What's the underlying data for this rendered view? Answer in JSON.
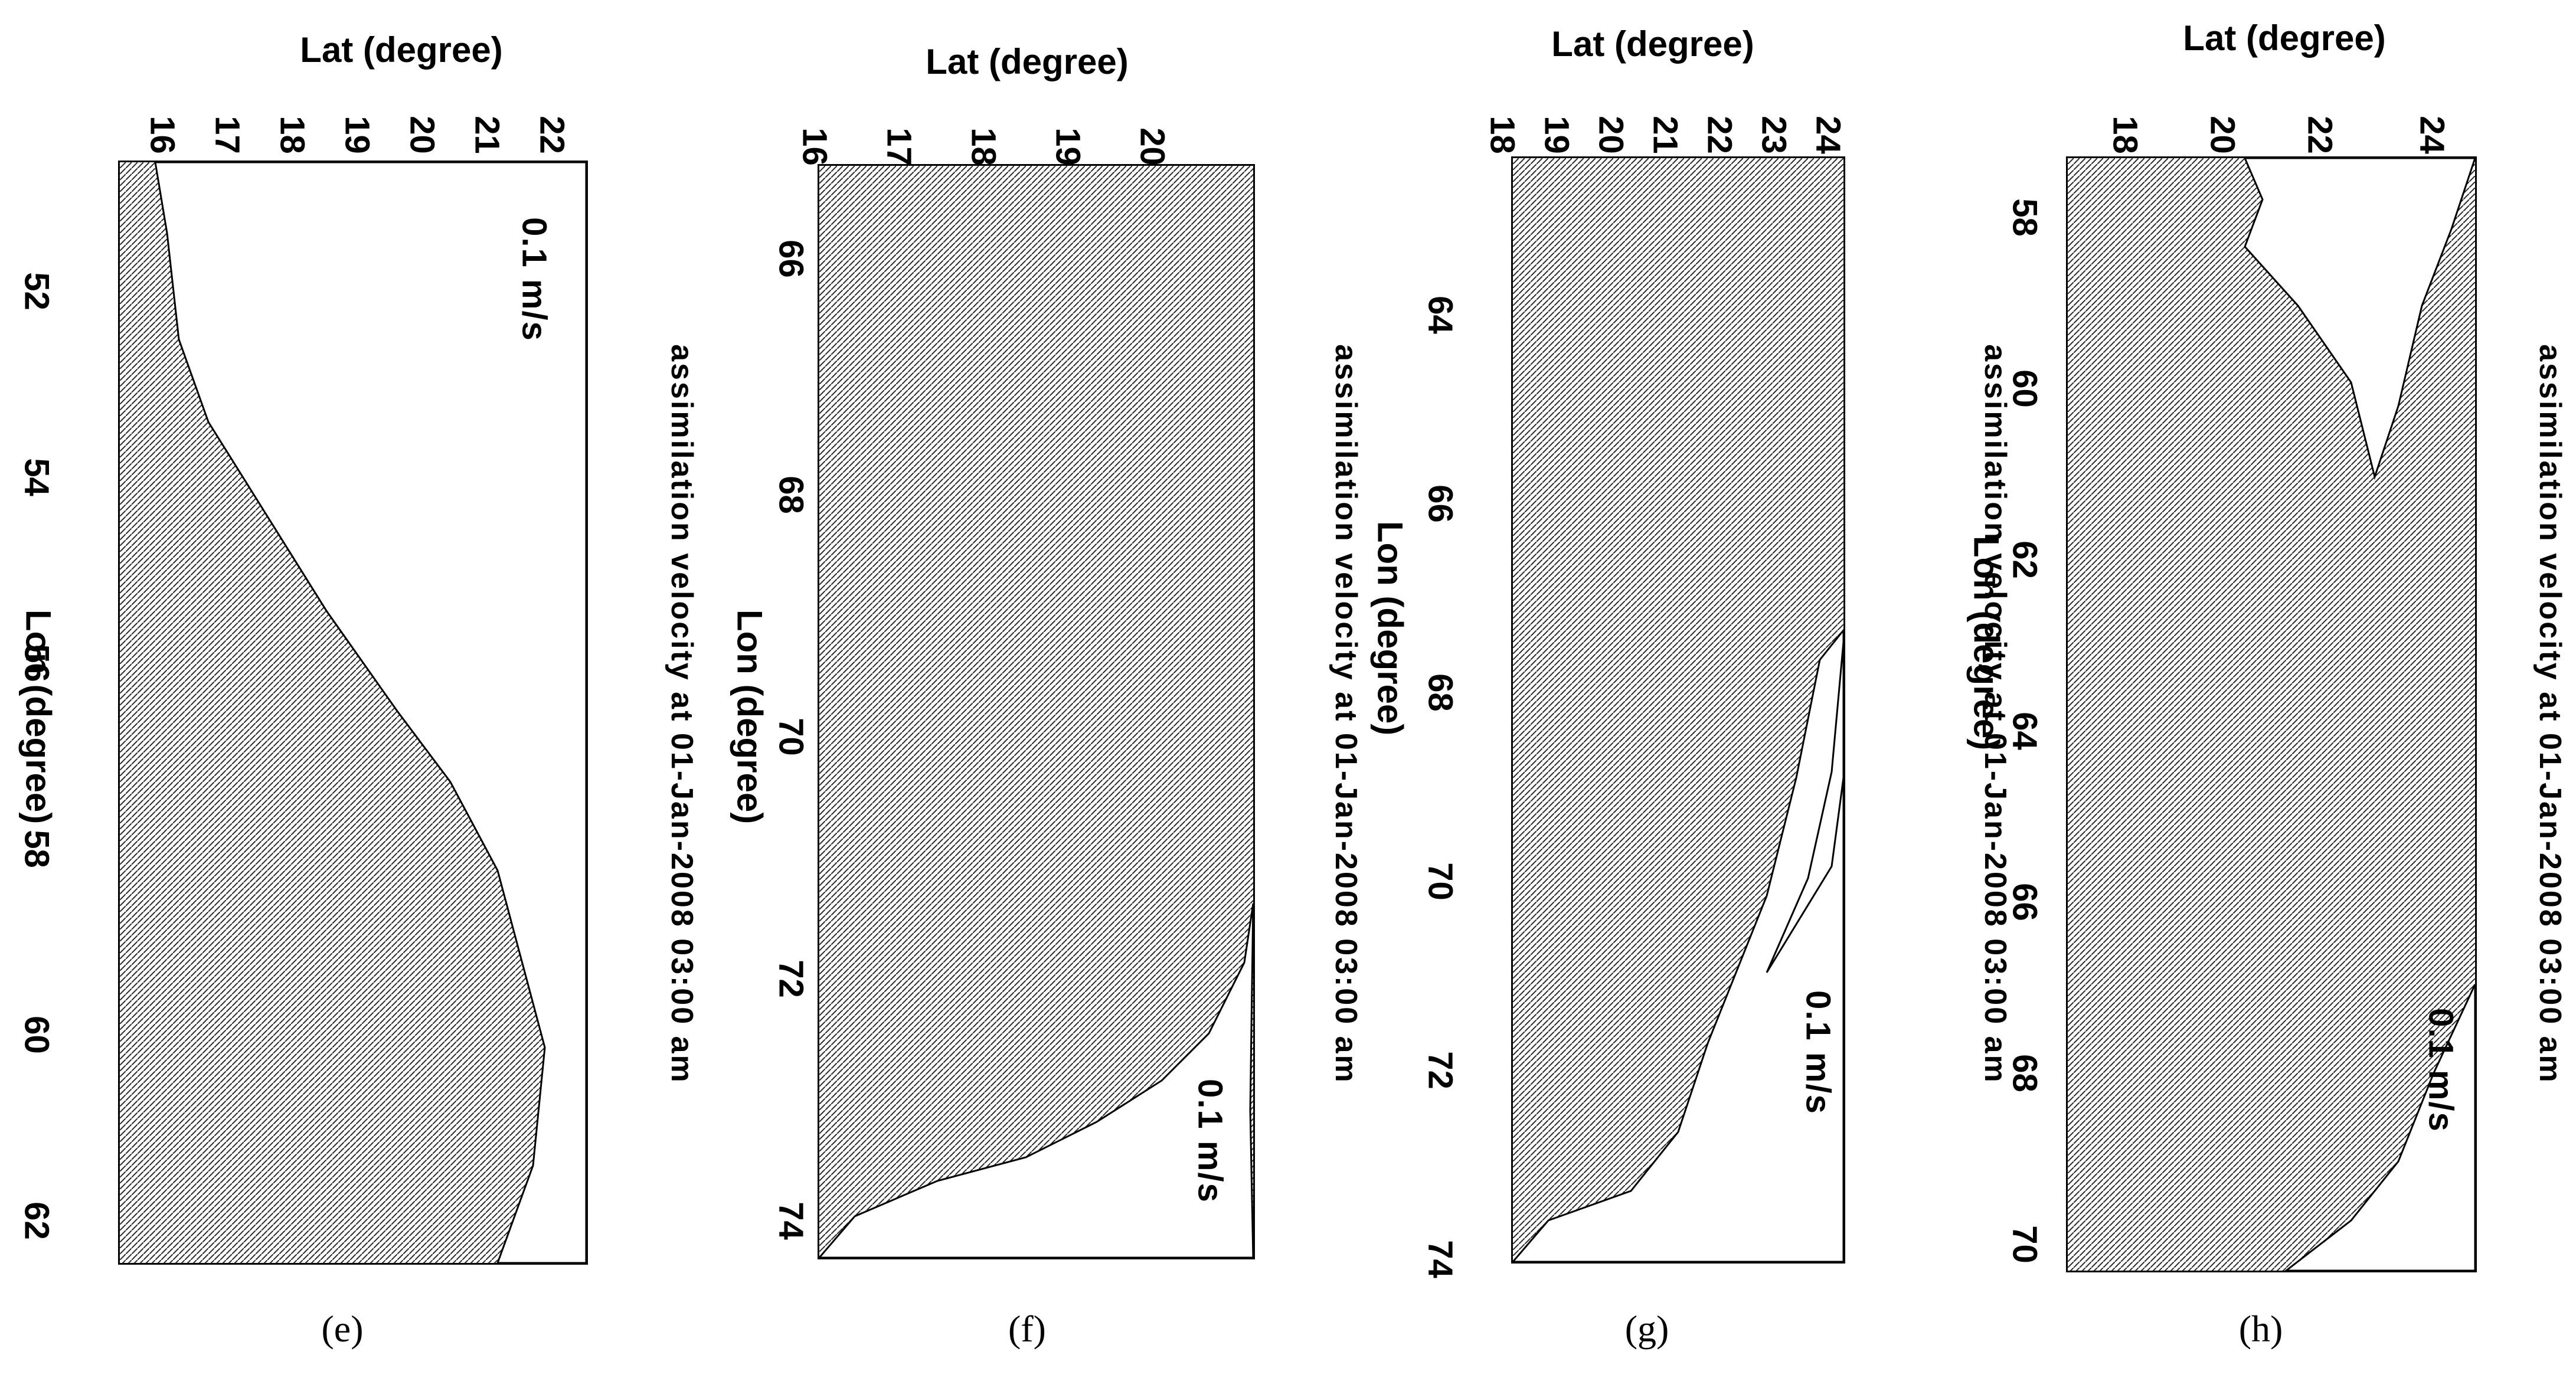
{
  "panels": [
    {
      "id": "e",
      "caption": "(e)",
      "title": "assimilation velocity at 01-Jan-2008 03:00 am",
      "scale_label": "0.1 m/s",
      "xlabel": "Lat (degree)",
      "ylabel": "Lon (degree)",
      "lat_ticks": [
        "16",
        "17",
        "18",
        "19",
        "20",
        "21",
        "22"
      ],
      "lon_ticks": [
        "52",
        "54",
        "56",
        "58",
        "60",
        "62"
      ]
    },
    {
      "id": "f",
      "caption": "(f)",
      "title": "assimilation velocity at 01-Jan-2008 03:00 am",
      "scale_label": "0.1 m/s",
      "xlabel": "Lat (degree)",
      "ylabel": "Lon (degree)",
      "lat_ticks": [
        "16",
        "17",
        "18",
        "19",
        "20"
      ],
      "lon_ticks": [
        "66",
        "68",
        "70",
        "72",
        "74"
      ]
    },
    {
      "id": "g",
      "caption": "(g)",
      "title": "assimilation velocity at 01-Jan-2008 03:00 am",
      "scale_label": "0.1 m/s",
      "xlabel": "Lat (degree)",
      "ylabel": "Lon (degree)",
      "lat_ticks": [
        "18",
        "19",
        "20",
        "21",
        "22",
        "23",
        "24"
      ],
      "lon_ticks": [
        "64",
        "66",
        "68",
        "70",
        "72",
        "74"
      ]
    },
    {
      "id": "h",
      "caption": "(h)",
      "title": "assimilation velocity at 01-Jan-2008 03:00 am",
      "scale_label": "0.1 m/s",
      "xlabel": "Lat (degree)",
      "ylabel": "Lon (degree)",
      "lat_ticks": [
        "18",
        "20",
        "22",
        "24"
      ],
      "lon_ticks": [
        "58",
        "60",
        "62",
        "64",
        "66",
        "68",
        "70"
      ]
    }
  ],
  "colors": {
    "field": "#2a2a2a",
    "land": "#ffffff",
    "frame": "#000000"
  }
}
